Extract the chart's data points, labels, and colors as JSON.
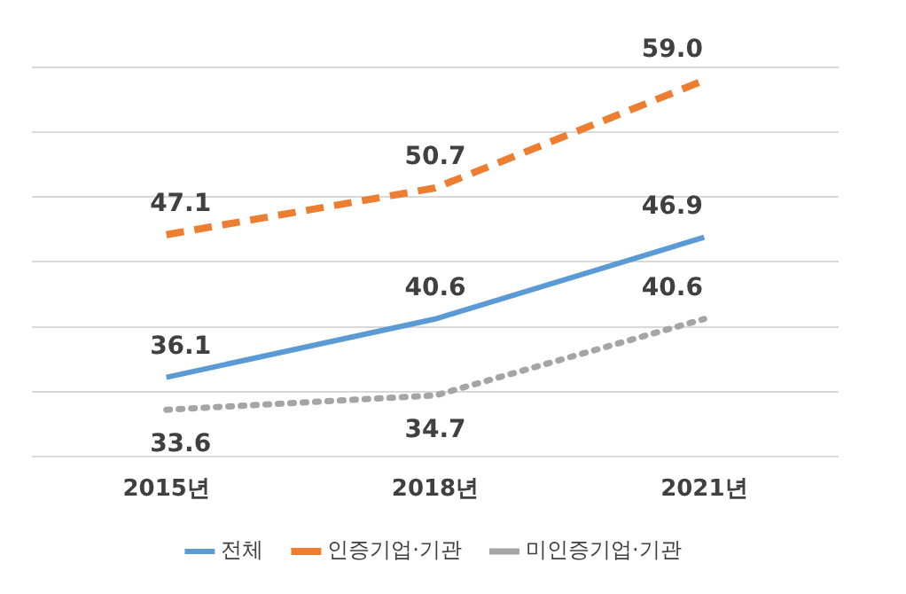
{
  "chart_data": {
    "type": "line",
    "categories": [
      "2015년",
      "2018년",
      "2021년"
    ],
    "series": [
      {
        "name": "전체",
        "color": "#5b9bd5",
        "values": [
          36.1,
          40.6,
          46.9
        ],
        "value_labels": [
          "36.1",
          "40.6",
          "46.9"
        ],
        "line_style": "solid"
      },
      {
        "name": "인증기업·기관",
        "color": "#ed7d31",
        "values": [
          47.1,
          50.7,
          59.0
        ],
        "value_labels": [
          "47.1",
          "50.7",
          "59.0"
        ],
        "line_style": "dashed"
      },
      {
        "name": "미인증기업·기관",
        "color": "#a5a5a5",
        "values": [
          33.6,
          34.7,
          40.6
        ],
        "value_labels": [
          "33.6",
          "34.7",
          "40.6"
        ],
        "line_style": "dotted"
      }
    ],
    "tick_labels": "x",
    "grid": "y",
    "legend": "bottom",
    "marker": "none"
  }
}
